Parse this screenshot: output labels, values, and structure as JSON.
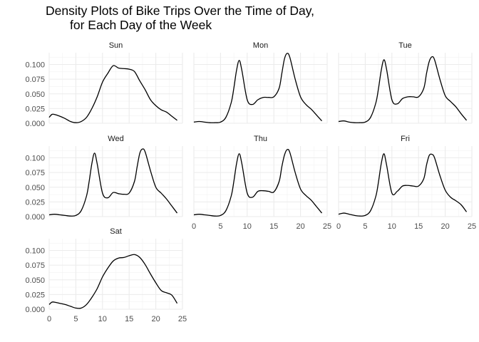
{
  "chart_data": {
    "type": "line",
    "title_lines": [
      "Density Plots of Bike Trips Over the Time of Day,",
      "for Each Day of the Week"
    ],
    "xlabel": "",
    "ylabel": "",
    "xlim": [
      0,
      25
    ],
    "ylim": [
      0,
      0.12
    ],
    "x_ticks": [
      "0",
      "5",
      "10",
      "15",
      "20",
      "25"
    ],
    "y_ticks": [
      "0.000",
      "0.025",
      "0.050",
      "0.075",
      "0.100"
    ],
    "grid": true,
    "panels": [
      {
        "label": "Sun",
        "x": [
          0,
          0.5,
          1,
          2,
          3,
          4,
          5,
          6,
          7,
          8,
          9,
          10,
          11,
          12,
          13,
          14,
          15,
          16,
          17,
          18,
          19,
          20,
          21,
          22,
          23,
          24
        ],
        "y": [
          0.01,
          0.015,
          0.015,
          0.012,
          0.008,
          0.003,
          0.001,
          0.003,
          0.01,
          0.025,
          0.045,
          0.07,
          0.085,
          0.098,
          0.094,
          0.093,
          0.092,
          0.088,
          0.072,
          0.057,
          0.04,
          0.03,
          0.023,
          0.019,
          0.012,
          0.005
        ]
      },
      {
        "label": "Mon",
        "x": [
          0,
          1,
          2,
          3,
          4,
          5,
          6,
          7,
          7.5,
          8,
          8.5,
          9,
          10,
          11,
          12,
          13,
          14,
          15,
          16,
          16.5,
          17,
          17.5,
          18,
          19,
          20,
          21,
          22,
          23,
          24
        ],
        "y": [
          0.002,
          0.003,
          0.002,
          0.001,
          0.001,
          0.002,
          0.01,
          0.035,
          0.06,
          0.09,
          0.107,
          0.09,
          0.04,
          0.032,
          0.04,
          0.044,
          0.044,
          0.045,
          0.06,
          0.085,
          0.11,
          0.119,
          0.112,
          0.075,
          0.045,
          0.032,
          0.024,
          0.014,
          0.004
        ]
      },
      {
        "label": "Tue",
        "x": [
          0,
          1,
          2,
          3,
          4,
          5,
          6,
          7,
          7.5,
          8,
          8.5,
          9,
          10,
          11,
          12,
          13,
          14,
          15,
          16,
          16.5,
          17,
          17.5,
          18,
          19,
          20,
          21,
          22,
          23,
          24
        ],
        "y": [
          0.003,
          0.004,
          0.002,
          0.001,
          0.001,
          0.002,
          0.01,
          0.035,
          0.06,
          0.09,
          0.108,
          0.092,
          0.04,
          0.033,
          0.042,
          0.045,
          0.045,
          0.045,
          0.06,
          0.085,
          0.105,
          0.113,
          0.108,
          0.075,
          0.047,
          0.037,
          0.028,
          0.016,
          0.005
        ]
      },
      {
        "label": "Wed",
        "x": [
          0,
          1,
          2,
          3,
          4,
          5,
          6,
          7,
          7.5,
          8,
          8.5,
          9,
          10,
          11,
          12,
          13,
          14,
          15,
          16,
          16.5,
          17,
          17.5,
          18,
          19,
          20,
          21,
          22,
          23,
          24
        ],
        "y": [
          0.003,
          0.004,
          0.003,
          0.002,
          0.001,
          0.002,
          0.01,
          0.035,
          0.06,
          0.09,
          0.108,
          0.09,
          0.04,
          0.032,
          0.041,
          0.039,
          0.038,
          0.04,
          0.06,
          0.085,
          0.108,
          0.115,
          0.11,
          0.078,
          0.05,
          0.04,
          0.03,
          0.018,
          0.006
        ]
      },
      {
        "label": "Thu",
        "x": [
          0,
          1,
          2,
          3,
          4,
          5,
          6,
          7,
          7.5,
          8,
          8.5,
          9,
          10,
          11,
          12,
          13,
          14,
          15,
          16,
          16.5,
          17,
          17.5,
          18,
          19,
          20,
          21,
          22,
          23,
          24
        ],
        "y": [
          0.003,
          0.004,
          0.003,
          0.002,
          0.001,
          0.002,
          0.01,
          0.035,
          0.06,
          0.09,
          0.107,
          0.09,
          0.04,
          0.033,
          0.043,
          0.044,
          0.043,
          0.042,
          0.06,
          0.085,
          0.105,
          0.114,
          0.109,
          0.075,
          0.047,
          0.036,
          0.028,
          0.017,
          0.006
        ]
      },
      {
        "label": "Fri",
        "x": [
          0,
          1,
          2,
          3,
          4,
          5,
          6,
          7,
          7.5,
          8,
          8.5,
          9,
          10,
          11,
          12,
          13,
          14,
          15,
          16,
          16.5,
          17,
          17.5,
          18,
          19,
          20,
          21,
          22,
          23,
          24
        ],
        "y": [
          0.004,
          0.006,
          0.004,
          0.002,
          0.001,
          0.002,
          0.01,
          0.035,
          0.06,
          0.09,
          0.107,
          0.088,
          0.04,
          0.043,
          0.052,
          0.053,
          0.052,
          0.052,
          0.065,
          0.088,
          0.104,
          0.106,
          0.1,
          0.07,
          0.045,
          0.033,
          0.027,
          0.02,
          0.008
        ]
      },
      {
        "label": "Sat",
        "x": [
          0,
          0.5,
          1,
          2,
          3,
          4,
          5,
          6,
          7,
          8,
          9,
          10,
          11,
          12,
          13,
          14,
          15,
          16,
          17,
          18,
          19,
          20,
          21,
          22,
          23,
          24
        ],
        "y": [
          0.008,
          0.012,
          0.012,
          0.01,
          0.008,
          0.005,
          0.002,
          0.002,
          0.008,
          0.02,
          0.035,
          0.055,
          0.07,
          0.082,
          0.087,
          0.088,
          0.091,
          0.093,
          0.088,
          0.076,
          0.06,
          0.045,
          0.032,
          0.028,
          0.024,
          0.01
        ]
      }
    ]
  }
}
